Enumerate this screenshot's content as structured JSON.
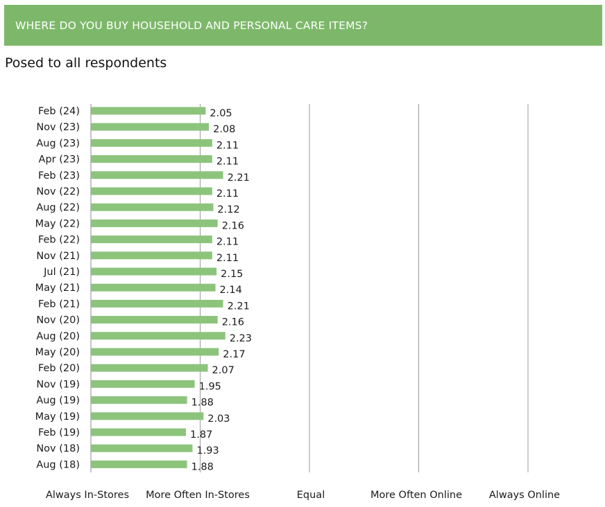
{
  "header": {
    "title": "WHERE DO YOU BUY HOUSEHOLD AND PERSONAL CARE ITEMS?"
  },
  "subtitle": "Posed to all respondents",
  "colors": {
    "banner": "#7db86a",
    "bar": "#8cc47c",
    "gridline": "#9a9a9a"
  },
  "chart_data": {
    "type": "bar",
    "orientation": "horizontal",
    "categories": [
      "Feb (24)",
      "Nov (23)",
      "Aug (23)",
      "Apr (23)",
      "Feb (23)",
      "Nov (22)",
      "Aug (22)",
      "May (22)",
      "Feb (22)",
      "Nov (21)",
      "Jul (21)",
      "May (21)",
      "Feb (21)",
      "Nov (20)",
      "Aug (20)",
      "May (20)",
      "Feb (20)",
      "Nov (19)",
      "Aug (19)",
      "May (19)",
      "Feb (19)",
      "Nov (18)",
      "Aug (18)"
    ],
    "values": [
      2.05,
      2.08,
      2.11,
      2.11,
      2.21,
      2.11,
      2.12,
      2.16,
      2.11,
      2.11,
      2.15,
      2.14,
      2.21,
      2.16,
      2.23,
      2.17,
      2.07,
      1.95,
      1.88,
      2.03,
      1.87,
      1.93,
      1.88
    ],
    "x_tick_labels": [
      "Always In-Stores",
      "More Often In-Stores",
      "Equal",
      "More Often Online",
      "Always Online"
    ],
    "xlim": [
      1,
      5
    ],
    "grid": true,
    "data_labels": true
  }
}
